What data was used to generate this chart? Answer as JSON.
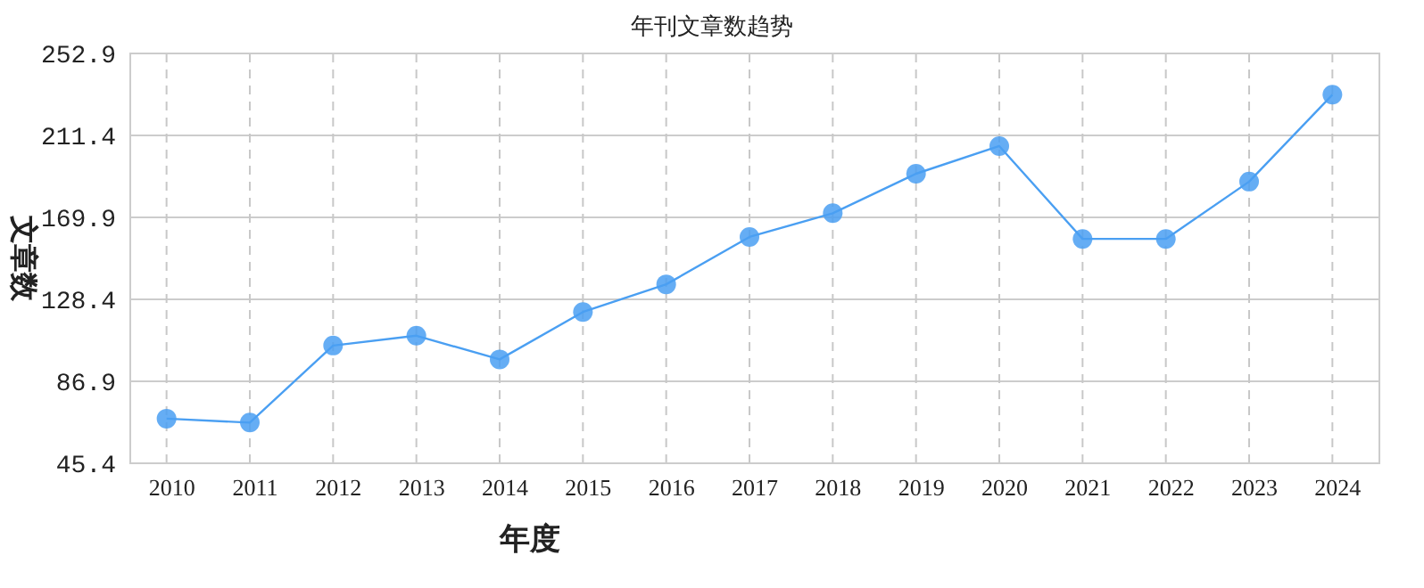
{
  "chart_data": {
    "type": "line",
    "title": "年刊文章数趋势",
    "xlabel": "年度",
    "ylabel": "文章数",
    "categories": [
      "2010",
      "2011",
      "2012",
      "2013",
      "2014",
      "2015",
      "2016",
      "2017",
      "2018",
      "2019",
      "2020",
      "2021",
      "2022",
      "2023",
      "2024"
    ],
    "series": [
      {
        "color": "#4a9ff2",
        "values": [
          68,
          66,
          105,
          110,
          98,
          122,
          136,
          160,
          172,
          192,
          206,
          159,
          159,
          188,
          232
        ]
      }
    ],
    "ylim": [
      45.4,
      252.9
    ],
    "yticks": [
      45.4,
      86.9,
      128.4,
      169.9,
      211.4,
      252.9
    ],
    "grid": true,
    "marker": "circle",
    "line_style": "solid"
  }
}
